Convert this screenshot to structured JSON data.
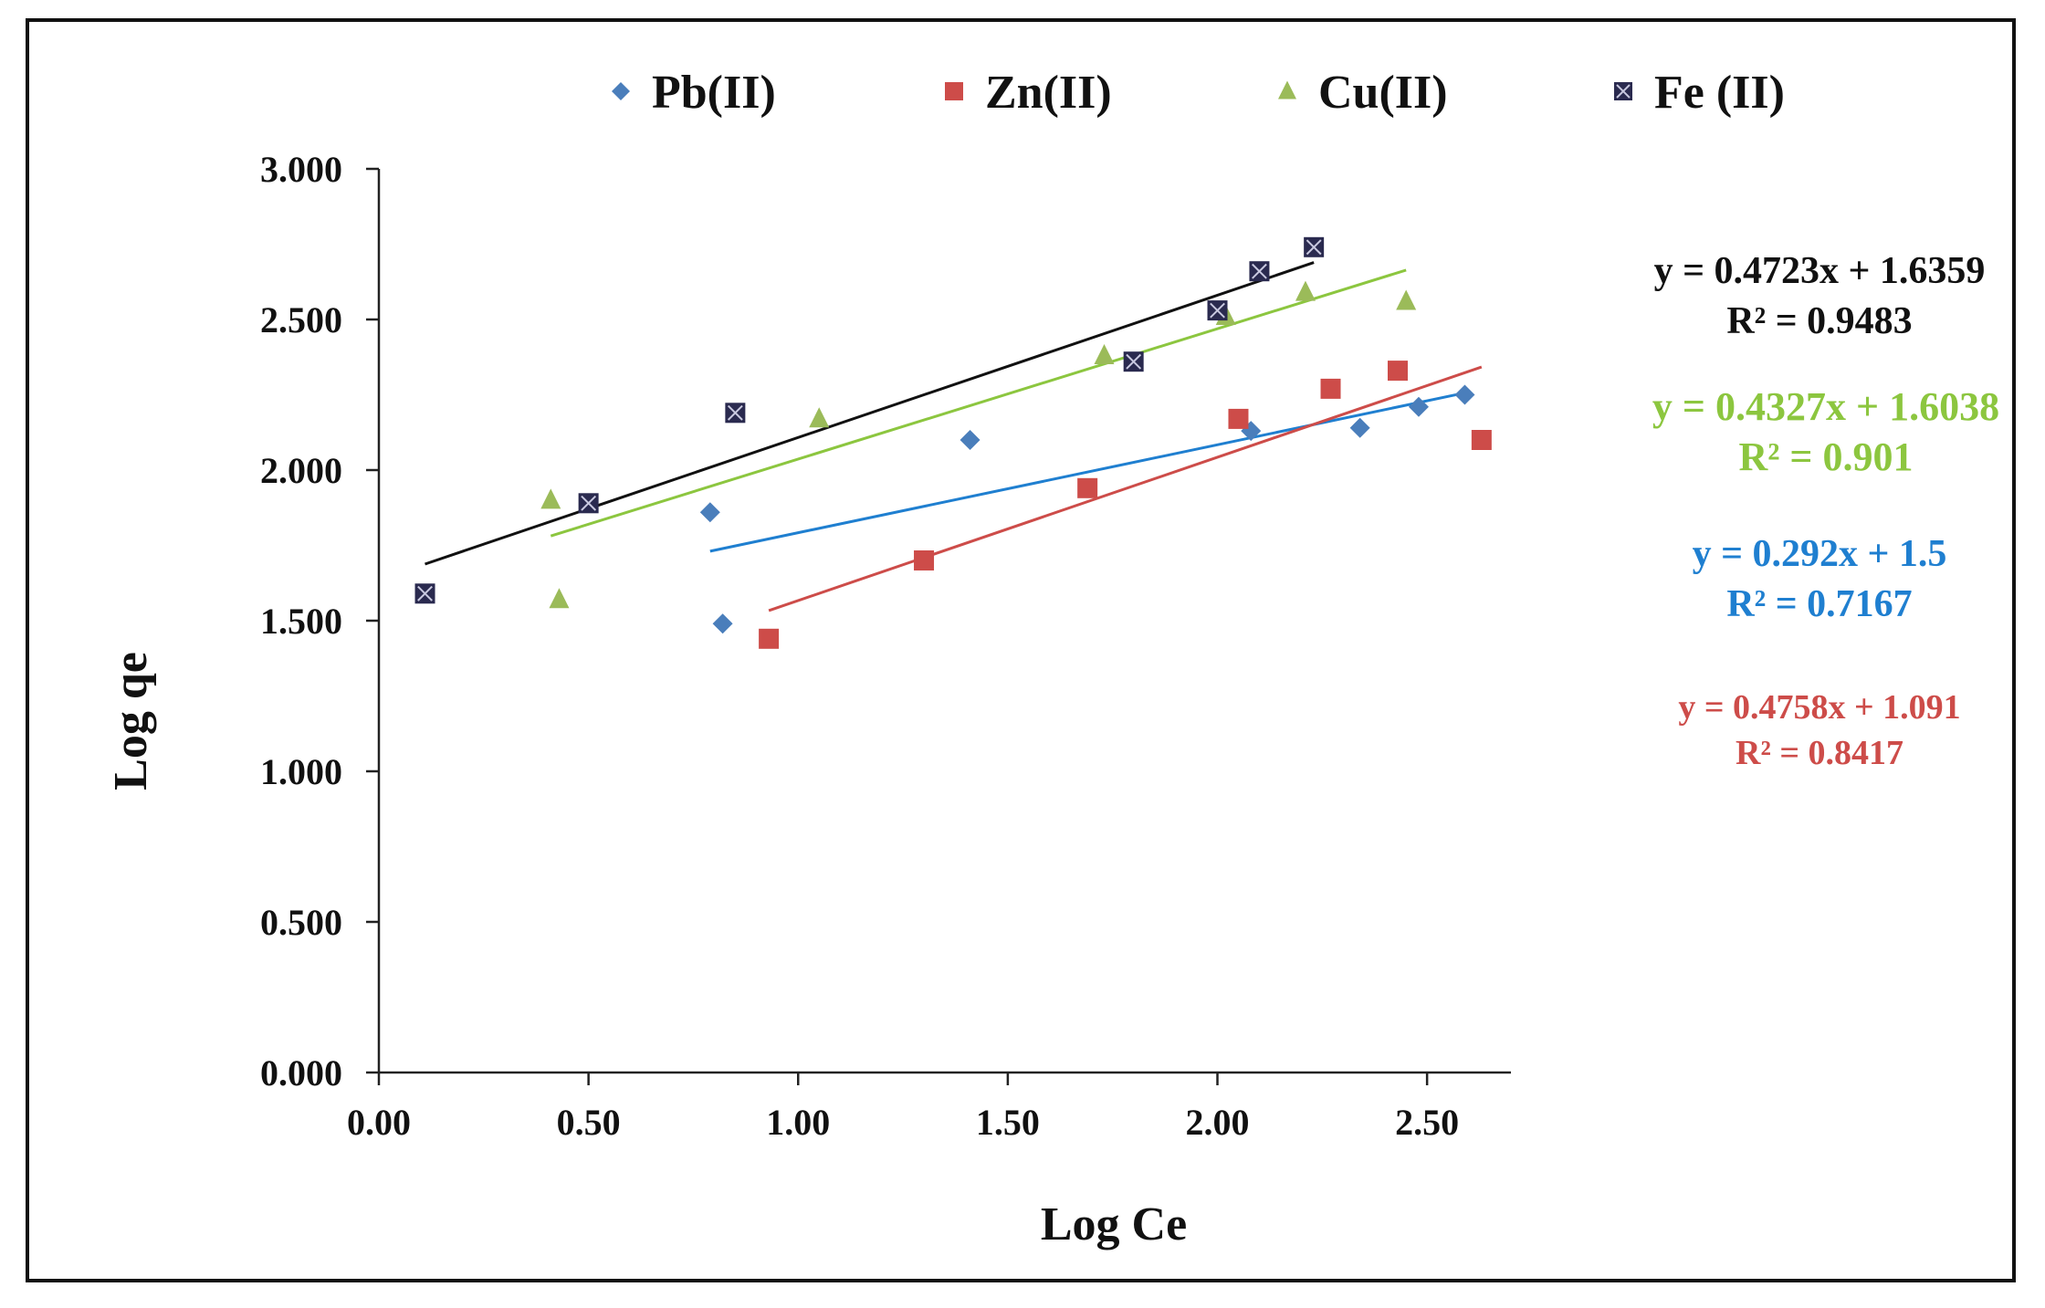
{
  "chart_data": {
    "type": "scatter",
    "title": "",
    "xlabel": "Log Ce",
    "ylabel": "Log qe",
    "xlim": [
      0,
      2.7
    ],
    "ylim": [
      0,
      3
    ],
    "x_ticks": [
      "0.00",
      "0.50",
      "1.00",
      "1.50",
      "2.00",
      "2.50"
    ],
    "y_ticks": [
      "0.000",
      "0.500",
      "1.000",
      "1.500",
      "2.000",
      "2.500",
      "3.000"
    ],
    "grid": false,
    "legend_position": "top",
    "series": [
      {
        "name": "Pb(II)",
        "marker": "diamond",
        "color": "#4a7ebb",
        "trend_color": "#1f7fd0",
        "points": [
          [
            0.79,
            1.86
          ],
          [
            0.82,
            1.49
          ],
          [
            1.41,
            2.1
          ],
          [
            2.08,
            2.13
          ],
          [
            2.34,
            2.14
          ],
          [
            2.48,
            2.21
          ],
          [
            2.59,
            2.25
          ]
        ],
        "trendline": {
          "slope": 0.292,
          "intercept": 1.5,
          "x_range": [
            0.79,
            2.59
          ]
        },
        "equation": "y = 0.292x + 1.5",
        "r2": "R² = 0.7167"
      },
      {
        "name": "Zn(II)",
        "marker": "square",
        "color": "#cd4c49",
        "trend_color": "#cd4c49",
        "points": [
          [
            0.93,
            1.44
          ],
          [
            1.3,
            1.7
          ],
          [
            1.69,
            1.94
          ],
          [
            2.05,
            2.17
          ],
          [
            2.27,
            2.27
          ],
          [
            2.43,
            2.33
          ],
          [
            2.63,
            2.1
          ]
        ],
        "trendline": {
          "slope": 0.4758,
          "intercept": 1.091,
          "x_range": [
            0.93,
            2.63
          ]
        },
        "equation": "y = 0.4758x + 1.091",
        "r2": "R² = 0.8417"
      },
      {
        "name": "Cu(II)",
        "marker": "triangle",
        "color": "#9bbb59",
        "trend_color": "#8cc63f",
        "points": [
          [
            0.41,
            1.9
          ],
          [
            0.43,
            1.57
          ],
          [
            1.05,
            2.17
          ],
          [
            1.73,
            2.38
          ],
          [
            2.02,
            2.51
          ],
          [
            2.21,
            2.59
          ],
          [
            2.45,
            2.56
          ]
        ],
        "trendline": {
          "slope": 0.4327,
          "intercept": 1.6038,
          "x_range": [
            0.41,
            2.45
          ]
        },
        "equation": "y = 0.4327x + 1.6038",
        "r2": "R² = 0.901"
      },
      {
        "name": "Fe (II)",
        "marker": "x-square",
        "color": "#2a2a4f",
        "trend_color": "#111111",
        "points": [
          [
            0.11,
            1.59
          ],
          [
            0.5,
            1.89
          ],
          [
            0.85,
            2.19
          ],
          [
            1.8,
            2.36
          ],
          [
            2.0,
            2.53
          ],
          [
            2.1,
            2.66
          ],
          [
            2.23,
            2.74
          ]
        ],
        "trendline": {
          "slope": 0.4723,
          "intercept": 1.6359,
          "x_range": [
            0.11,
            2.23
          ]
        },
        "equation": "y = 0.4723x + 1.6359",
        "r2": "R² = 0.9483"
      }
    ]
  }
}
